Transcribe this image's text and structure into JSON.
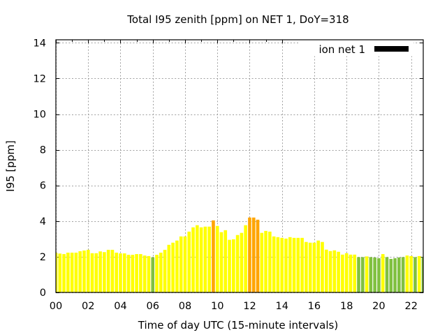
{
  "chart_data": {
    "type": "bar",
    "title": "Total I95 zenith [ppm] on NET 1, DoY=318",
    "xlabel": "Time of day UTC (15-minute intervals)",
    "ylabel": "I95 [ppm]",
    "xlim": [
      0,
      22.75
    ],
    "ylim": [
      0,
      14.17
    ],
    "grid": true,
    "xticks": [
      0,
      2,
      4,
      6,
      8,
      10,
      12,
      14,
      16,
      18,
      20,
      22
    ],
    "xtick_labels": [
      "00",
      "02",
      "04",
      "06",
      "08",
      "10",
      "12",
      "14",
      "16",
      "18",
      "20",
      "22"
    ],
    "x_minor_ticks": [
      1,
      3,
      5,
      7,
      9,
      11,
      13,
      15,
      17,
      19,
      21
    ],
    "yticks": [
      0,
      2,
      4,
      6,
      8,
      10,
      12,
      14
    ],
    "ytick_labels": [
      "0",
      "2",
      "4",
      "6",
      "8",
      "10",
      "12",
      "14"
    ],
    "bar_width_hours": 0.2,
    "legend": {
      "label": "ion net 1",
      "color": "#000000",
      "position": "top-right"
    },
    "color_thresholds": [
      {
        "below": 2,
        "color": "#80c040"
      },
      {
        "below": 4,
        "color": "#ffff00"
      },
      {
        "below": null,
        "color": "#ffa500"
      }
    ],
    "x": [
      0,
      0.25,
      0.5,
      0.75,
      1,
      1.25,
      1.5,
      1.75,
      2,
      2.25,
      2.5,
      2.75,
      3,
      3.25,
      3.5,
      3.75,
      4,
      4.25,
      4.5,
      4.75,
      5,
      5.25,
      5.5,
      5.75,
      6,
      6.25,
      6.5,
      6.75,
      7,
      7.25,
      7.5,
      7.75,
      8,
      8.25,
      8.5,
      8.75,
      9,
      9.25,
      9.5,
      9.75,
      10,
      10.25,
      10.5,
      10.75,
      11,
      11.25,
      11.5,
      11.75,
      12,
      12.25,
      12.5,
      12.75,
      13,
      13.25,
      13.5,
      13.75,
      14,
      14.25,
      14.5,
      14.75,
      15,
      15.25,
      15.5,
      15.75,
      16,
      16.25,
      16.5,
      16.75,
      17,
      17.25,
      17.5,
      17.75,
      18,
      18.25,
      18.5,
      18.75,
      19,
      19.25,
      19.5,
      19.75,
      20,
      20.25,
      20.5,
      20.75,
      21,
      21.25,
      21.5,
      21.75,
      22,
      22.25,
      22.5,
      22.75
    ],
    "series": [
      {
        "name": "ion net 1",
        "values": [
          2.22,
          2.18,
          2.15,
          2.23,
          2.23,
          2.23,
          2.31,
          2.35,
          2.39,
          2.2,
          2.2,
          2.3,
          2.26,
          2.39,
          2.39,
          2.23,
          2.19,
          2.19,
          2.11,
          2.11,
          2.15,
          2.15,
          2.07,
          2.04,
          1.97,
          2.11,
          2.23,
          2.39,
          2.67,
          2.79,
          2.91,
          3.14,
          3.14,
          3.41,
          3.65,
          3.77,
          3.65,
          3.69,
          3.69,
          4.04,
          3.73,
          3.38,
          3.49,
          2.95,
          2.98,
          3.22,
          3.34,
          3.77,
          4.2,
          4.2,
          4.08,
          3.34,
          3.45,
          3.41,
          3.14,
          3.1,
          3.06,
          3.02,
          3.1,
          3.06,
          3.06,
          3.06,
          2.83,
          2.79,
          2.79,
          2.91,
          2.83,
          2.4,
          2.32,
          2.36,
          2.28,
          2.12,
          2.2,
          2.12,
          2.12,
          1.98,
          1.98,
          2.02,
          1.98,
          1.96,
          1.92,
          2.15,
          1.98,
          1.88,
          1.92,
          1.96,
          1.98,
          2.07,
          2.04,
          1.98,
          2.04,
          1.98
        ]
      }
    ]
  }
}
